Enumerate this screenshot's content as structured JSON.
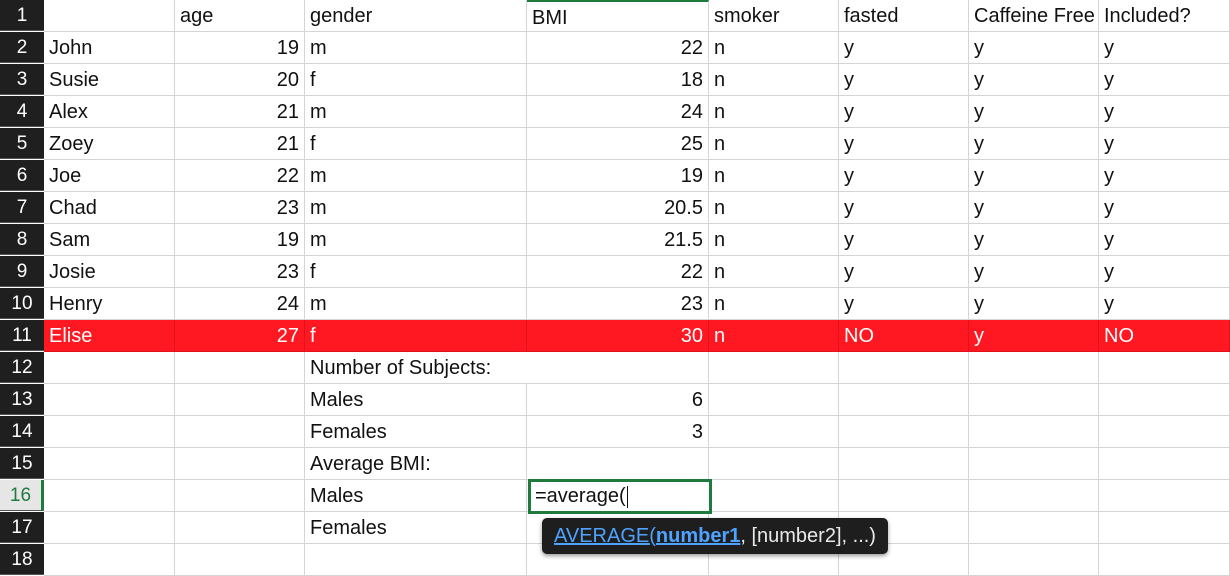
{
  "row_numbers": [
    "1",
    "2",
    "3",
    "4",
    "5",
    "6",
    "7",
    "8",
    "9",
    "10",
    "11",
    "12",
    "13",
    "14",
    "15",
    "16",
    "17",
    "18"
  ],
  "headers": [
    "",
    "age",
    "gender",
    "BMI",
    "smoker",
    "fasted",
    "Caffeine Free",
    "Included?"
  ],
  "rows": [
    [
      "John",
      "19",
      "m",
      "22",
      "n",
      "y",
      "y",
      "y"
    ],
    [
      "Susie",
      "20",
      "f",
      "18",
      "n",
      "y",
      "y",
      "y"
    ],
    [
      "Alex",
      "21",
      "m",
      "24",
      "n",
      "y",
      "y",
      "y"
    ],
    [
      "Zoey",
      "21",
      "f",
      "25",
      "n",
      "y",
      "y",
      "y"
    ],
    [
      "Joe",
      "22",
      "m",
      "19",
      "n",
      "y",
      "y",
      "y"
    ],
    [
      "Chad",
      "23",
      "m",
      "20.5",
      "n",
      "y",
      "y",
      "y"
    ],
    [
      "Sam",
      "19",
      "m",
      "21.5",
      "n",
      "y",
      "y",
      "y"
    ],
    [
      "Josie",
      "23",
      "f",
      "22",
      "n",
      "y",
      "y",
      "y"
    ],
    [
      "Henry",
      "24",
      "m",
      "23",
      "n",
      "y",
      "y",
      "y"
    ],
    [
      "Elise",
      "27",
      "f",
      "30",
      "n",
      "NO",
      "y",
      "NO"
    ]
  ],
  "summary": {
    "number_of_subjects_label": "Number of Subjects:",
    "males_label": "Males",
    "males_count": "6",
    "females_label": "Females",
    "females_count": "3",
    "average_bmi_label": "Average BMI:",
    "males_label_2": "Males",
    "females_label_2": "Females"
  },
  "editor": {
    "formula": "=average("
  },
  "tooltip": {
    "function_name": "AVERAGE",
    "open_paren": "(",
    "arg1": "number1",
    "rest": ", [number2], ...)"
  },
  "colors": {
    "highlight_row": "#ff1721",
    "active_green": "#1f7a3e",
    "tooltip_bg": "#1e1e1e",
    "link_blue": "#4da3ff"
  },
  "active_row": "16",
  "highlight_row": "11"
}
